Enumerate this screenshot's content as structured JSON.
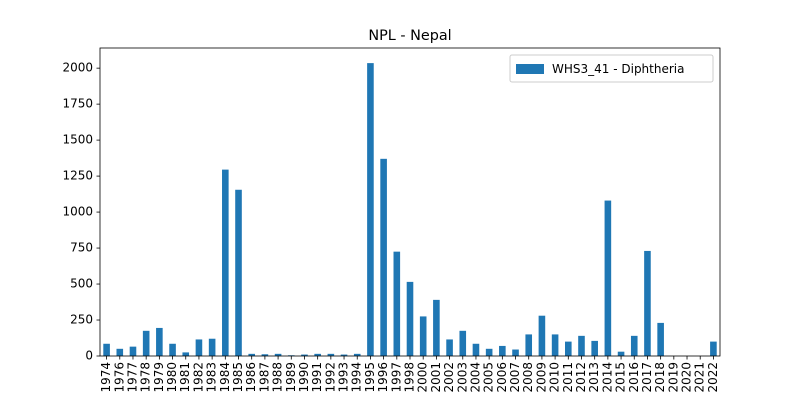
{
  "chart_data": {
    "type": "bar",
    "title": "NPL - Nepal",
    "xlabel": "",
    "ylabel": "",
    "ylim": [
      0,
      2140
    ],
    "yticks": [
      0,
      250,
      500,
      750,
      1000,
      1250,
      1500,
      1750,
      2000
    ],
    "legend_position": "top-right",
    "grid": false,
    "categories": [
      "1974",
      "1976",
      "1977",
      "1978",
      "1979",
      "1980",
      "1981",
      "1982",
      "1983",
      "1984",
      "1985",
      "1986",
      "1987",
      "1988",
      "1989",
      "1990",
      "1991",
      "1992",
      "1993",
      "1994",
      "1995",
      "1996",
      "1997",
      "1998",
      "2000",
      "2001",
      "2002",
      "2003",
      "2004",
      "2005",
      "2006",
      "2007",
      "2008",
      "2009",
      "2010",
      "2011",
      "2012",
      "2013",
      "2014",
      "2015",
      "2016",
      "2017",
      "2018",
      "2019",
      "2020",
      "2021",
      "2022"
    ],
    "series": [
      {
        "name": "WHS3_41 - Diphtheria",
        "color": "#1f77b4",
        "values": [
          85,
          50,
          65,
          175,
          195,
          85,
          25,
          115,
          120,
          1295,
          1155,
          15,
          12,
          15,
          5,
          10,
          15,
          15,
          10,
          15,
          2035,
          1370,
          725,
          515,
          275,
          390,
          115,
          175,
          85,
          50,
          70,
          45,
          150,
          280,
          150,
          100,
          140,
          105,
          1080,
          30,
          140,
          730,
          230,
          0,
          0,
          0,
          100
        ]
      }
    ]
  }
}
